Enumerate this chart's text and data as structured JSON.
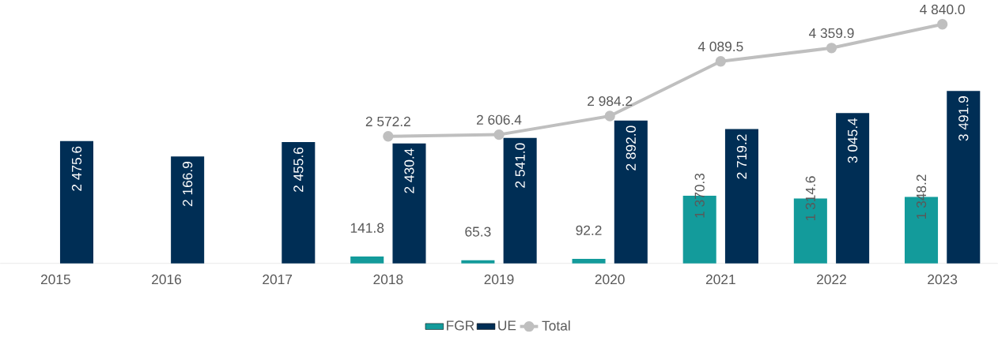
{
  "chart_data": {
    "type": "bar",
    "categories": [
      "2015",
      "2016",
      "2017",
      "2018",
      "2019",
      "2020",
      "2021",
      "2022",
      "2023"
    ],
    "legend": "bottom",
    "series": [
      {
        "name": "FGR",
        "color": "#139b9b",
        "values": [
          null,
          null,
          null,
          141.8,
          65.3,
          92.2,
          1370.3,
          1314.6,
          1348.2
        ],
        "value_labels": [
          null,
          null,
          null,
          "141.8",
          "65.3",
          "92.2",
          "1 370.3",
          "1 314.6",
          "1 348.2"
        ]
      },
      {
        "name": "UE",
        "color": "#002e55",
        "values": [
          2475.6,
          2166.9,
          2455.6,
          2430.4,
          2541.0,
          2892.0,
          2719.2,
          3045.4,
          3491.9
        ],
        "value_labels": [
          "2 475.6",
          "2 166.9",
          "2 455.6",
          "2 430.4",
          "2 541.0",
          "2 892.0",
          "2 719.2",
          "3 045.4",
          "3 491.9"
        ]
      },
      {
        "name": "Total",
        "type": "line",
        "marker": "circle",
        "color": "#bfbfbf",
        "values": [
          null,
          null,
          null,
          2572.2,
          2606.4,
          2984.2,
          4089.5,
          4359.9,
          4840.0
        ],
        "value_labels": [
          null,
          null,
          null,
          "2 572.2",
          "2 606.4",
          "2 984.2",
          "4 089.5",
          "4 359.9",
          "4 840.0"
        ]
      }
    ]
  }
}
